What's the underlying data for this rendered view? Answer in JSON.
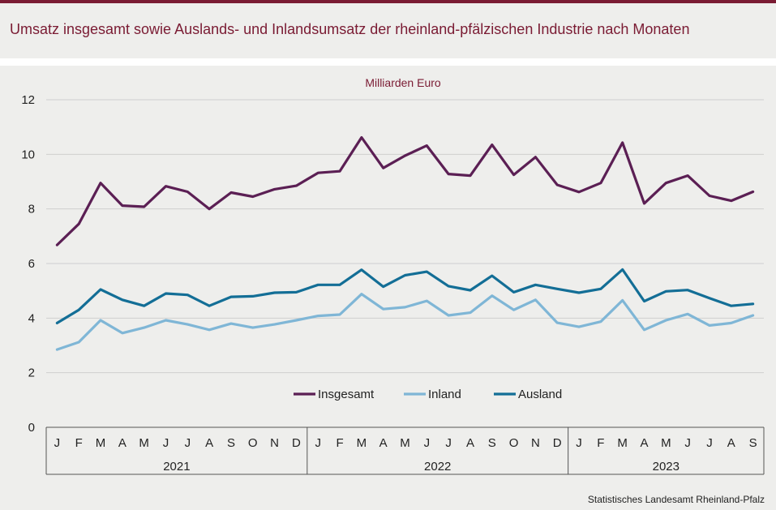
{
  "header": {
    "title": "Umsatz insgesamt sowie Auslands- und Inlandsumsatz der rheinland-pfälzischen Industrie nach Monaten"
  },
  "footer": {
    "source": "Statistisches Landesamt  Rheinland-Pfalz"
  },
  "colors": {
    "insgesamt": "#5b1f54",
    "inland": "#7fb6d6",
    "ausland": "#136e96",
    "grid": "#cfcfcf",
    "title": "#7a1b33"
  },
  "chart_data": {
    "type": "line",
    "title": "Umsatz insgesamt sowie Auslands- und Inlandsumsatz der rheinland-pfälzischen Industrie nach Monaten",
    "unit_label": "Milliarden Euro",
    "ylim": [
      0,
      12
    ],
    "yticks": [
      "0",
      "2",
      "4",
      "6",
      "8",
      "10",
      "12"
    ],
    "months": [
      "J",
      "F",
      "M",
      "A",
      "M",
      "J",
      "J",
      "A",
      "S",
      "O",
      "N",
      "D",
      "J",
      "F",
      "M",
      "A",
      "M",
      "J",
      "J",
      "A",
      "S",
      "O",
      "N",
      "D",
      "J",
      "F",
      "M",
      "A",
      "M",
      "J",
      "J",
      "A",
      "S"
    ],
    "years": [
      {
        "label": "2021",
        "count": 12
      },
      {
        "label": "2022",
        "count": 12
      },
      {
        "label": "2023",
        "count": 9
      }
    ],
    "legend_position": "bottom-center",
    "series": [
      {
        "name": "Insgesamt",
        "key": "insgesamt",
        "values": [
          6.68,
          7.45,
          8.95,
          8.12,
          8.08,
          8.83,
          8.63,
          8.0,
          8.6,
          8.45,
          8.72,
          8.85,
          9.32,
          9.38,
          10.62,
          9.5,
          9.95,
          10.32,
          9.28,
          9.22,
          10.35,
          9.25,
          9.9,
          8.88,
          8.62,
          8.95,
          10.43,
          8.2,
          8.95,
          9.22,
          8.48,
          8.3,
          8.63
        ]
      },
      {
        "name": "Inland",
        "key": "inland",
        "values": [
          2.85,
          3.12,
          3.92,
          3.45,
          3.65,
          3.92,
          3.77,
          3.57,
          3.8,
          3.65,
          3.77,
          3.92,
          4.08,
          4.13,
          4.88,
          4.33,
          4.4,
          4.63,
          4.1,
          4.2,
          4.82,
          4.3,
          4.67,
          3.83,
          3.68,
          3.87,
          4.65,
          3.57,
          3.92,
          4.15,
          3.73,
          3.82,
          4.1
        ]
      },
      {
        "name": "Ausland",
        "key": "ausland",
        "values": [
          3.82,
          4.3,
          5.05,
          4.67,
          4.45,
          4.9,
          4.85,
          4.45,
          4.78,
          4.8,
          4.93,
          4.95,
          5.22,
          5.22,
          5.77,
          5.15,
          5.57,
          5.7,
          5.17,
          5.02,
          5.55,
          4.95,
          5.22,
          5.07,
          4.93,
          5.07,
          5.78,
          4.62,
          4.98,
          5.03,
          4.73,
          4.45,
          4.52
        ]
      }
    ]
  }
}
